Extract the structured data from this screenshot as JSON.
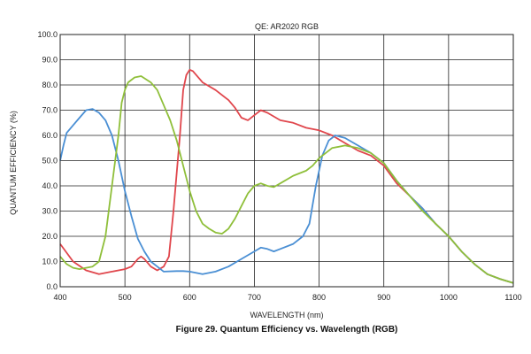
{
  "chart_data": {
    "type": "line",
    "title": "QE: AR2020 RGB",
    "xlabel": "WAVELENGTH (nm)",
    "ylabel": "QUANTUM EFFICIENCY (%)",
    "caption": "Figure 29. Quantum Efficiency vs. Wavelength (RGB)",
    "xlim": [
      400,
      1100
    ],
    "ylim": [
      0,
      100
    ],
    "x_ticks": [
      400,
      500,
      600,
      700,
      800,
      900,
      1000,
      1100
    ],
    "y_ticks": [
      0,
      10,
      20,
      30,
      40,
      50,
      60,
      70,
      80,
      90,
      100
    ],
    "x_tick_labels": [
      "400",
      "500",
      "600",
      "700",
      "800",
      "900",
      "1000",
      "1100"
    ],
    "y_tick_labels": [
      "0.0",
      "10.0",
      "20.0",
      "30.0",
      "40.0",
      "50.0",
      "60.0",
      "70.0",
      "80.0",
      "90.0",
      "100.0"
    ],
    "grid": true,
    "series": [
      {
        "color": "#e0464c",
        "points": [
          [
            400,
            17
          ],
          [
            420,
            10
          ],
          [
            440,
            6.5
          ],
          [
            460,
            5
          ],
          [
            480,
            6
          ],
          [
            500,
            7
          ],
          [
            510,
            8
          ],
          [
            520,
            11
          ],
          [
            525,
            12
          ],
          [
            530,
            11
          ],
          [
            540,
            8
          ],
          [
            550,
            6.5
          ],
          [
            560,
            8
          ],
          [
            568,
            12
          ],
          [
            575,
            30
          ],
          [
            585,
            60
          ],
          [
            590,
            78
          ],
          [
            595,
            84
          ],
          [
            600,
            86
          ],
          [
            605,
            85.5
          ],
          [
            620,
            81
          ],
          [
            640,
            78
          ],
          [
            660,
            74
          ],
          [
            670,
            71
          ],
          [
            680,
            67
          ],
          [
            690,
            66
          ],
          [
            700,
            68
          ],
          [
            710,
            70
          ],
          [
            720,
            69
          ],
          [
            740,
            66
          ],
          [
            760,
            65
          ],
          [
            780,
            63
          ],
          [
            800,
            62
          ],
          [
            820,
            60
          ],
          [
            840,
            57
          ],
          [
            860,
            54
          ],
          [
            880,
            52
          ],
          [
            900,
            48
          ],
          [
            920,
            41
          ],
          [
            940,
            36
          ],
          [
            960,
            31
          ],
          [
            980,
            25
          ],
          [
            1000,
            20
          ],
          [
            1020,
            14
          ],
          [
            1040,
            9
          ],
          [
            1060,
            5
          ],
          [
            1080,
            3
          ],
          [
            1100,
            1.5
          ]
        ]
      },
      {
        "color": "#4a8fd4",
        "points": [
          [
            400,
            50
          ],
          [
            405,
            56
          ],
          [
            410,
            61
          ],
          [
            420,
            64
          ],
          [
            430,
            67
          ],
          [
            440,
            70
          ],
          [
            450,
            70.5
          ],
          [
            460,
            69
          ],
          [
            470,
            66
          ],
          [
            480,
            60
          ],
          [
            490,
            50
          ],
          [
            500,
            38
          ],
          [
            510,
            28
          ],
          [
            520,
            19
          ],
          [
            530,
            14
          ],
          [
            540,
            10
          ],
          [
            550,
            8
          ],
          [
            560,
            6
          ],
          [
            580,
            6.2
          ],
          [
            590,
            6.2
          ],
          [
            600,
            6
          ],
          [
            620,
            5
          ],
          [
            640,
            6
          ],
          [
            660,
            8
          ],
          [
            680,
            11
          ],
          [
            700,
            14
          ],
          [
            710,
            15.5
          ],
          [
            720,
            15
          ],
          [
            730,
            14
          ],
          [
            740,
            15
          ],
          [
            760,
            17
          ],
          [
            775,
            20
          ],
          [
            785,
            25
          ],
          [
            795,
            40
          ],
          [
            805,
            52
          ],
          [
            815,
            58
          ],
          [
            825,
            60
          ],
          [
            840,
            59
          ],
          [
            860,
            56
          ],
          [
            880,
            53
          ],
          [
            900,
            49
          ],
          [
            920,
            42
          ],
          [
            940,
            36
          ],
          [
            960,
            31
          ],
          [
            980,
            25
          ],
          [
            1000,
            20
          ],
          [
            1020,
            14
          ],
          [
            1040,
            9
          ],
          [
            1060,
            5
          ],
          [
            1080,
            3
          ],
          [
            1100,
            1.5
          ]
        ]
      },
      {
        "color": "#8fbf3a",
        "points": [
          [
            400,
            12
          ],
          [
            410,
            9
          ],
          [
            420,
            7.5
          ],
          [
            430,
            7
          ],
          [
            440,
            7.5
          ],
          [
            450,
            8
          ],
          [
            460,
            10
          ],
          [
            470,
            20
          ],
          [
            480,
            40
          ],
          [
            490,
            60
          ],
          [
            495,
            73
          ],
          [
            500,
            78
          ],
          [
            505,
            81
          ],
          [
            515,
            83
          ],
          [
            525,
            83.5
          ],
          [
            540,
            81
          ],
          [
            550,
            78
          ],
          [
            560,
            72
          ],
          [
            570,
            66
          ],
          [
            580,
            58
          ],
          [
            590,
            48
          ],
          [
            600,
            38
          ],
          [
            610,
            30
          ],
          [
            620,
            25
          ],
          [
            630,
            23
          ],
          [
            640,
            21.5
          ],
          [
            650,
            21
          ],
          [
            660,
            23
          ],
          [
            670,
            27
          ],
          [
            680,
            32
          ],
          [
            690,
            37
          ],
          [
            700,
            40
          ],
          [
            710,
            41
          ],
          [
            720,
            40
          ],
          [
            730,
            39.5
          ],
          [
            740,
            41
          ],
          [
            760,
            44
          ],
          [
            780,
            46
          ],
          [
            790,
            48
          ],
          [
            800,
            51
          ],
          [
            820,
            55
          ],
          [
            840,
            56
          ],
          [
            860,
            55
          ],
          [
            880,
            53
          ],
          [
            900,
            49
          ],
          [
            920,
            42
          ],
          [
            940,
            36
          ],
          [
            960,
            30
          ],
          [
            980,
            25
          ],
          [
            1000,
            20
          ],
          [
            1020,
            14
          ],
          [
            1040,
            9
          ],
          [
            1060,
            5
          ],
          [
            1080,
            3
          ],
          [
            1100,
            1.5
          ]
        ]
      }
    ]
  }
}
